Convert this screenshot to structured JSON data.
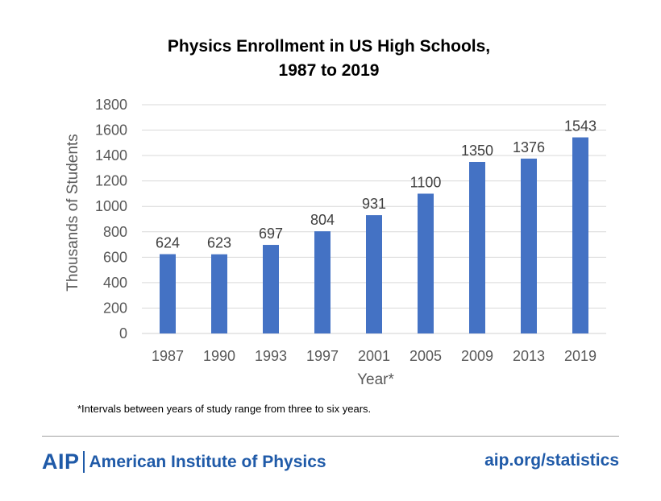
{
  "chart_data": {
    "type": "bar",
    "title_lines": [
      "Physics Enrollment in US High Schools,",
      "1987 to 2019"
    ],
    "categories": [
      "1987",
      "1990",
      "1993",
      "1997",
      "2001",
      "2005",
      "2009",
      "2013",
      "2019"
    ],
    "values": [
      624,
      623,
      697,
      804,
      931,
      1100,
      1350,
      1376,
      1543
    ],
    "data_labels": [
      "624",
      "623",
      "697",
      "804",
      "931",
      "1100",
      "1350",
      "1376",
      "1543"
    ],
    "xlabel": "Year*",
    "ylabel": "Thousands of Students",
    "ylim": [
      0,
      1800
    ],
    "yticks": [
      0,
      200,
      400,
      600,
      800,
      1000,
      1200,
      1400,
      1600,
      1800
    ],
    "grid": true,
    "bar_color": "#4472c4"
  },
  "footnote": "*Intervals between years of study range from three to six years.",
  "footer": {
    "logo_mark": "AIP",
    "org_name": "American Institute of Physics",
    "website": "aip.org/statistics",
    "brand_color": "#1f5aa8"
  }
}
